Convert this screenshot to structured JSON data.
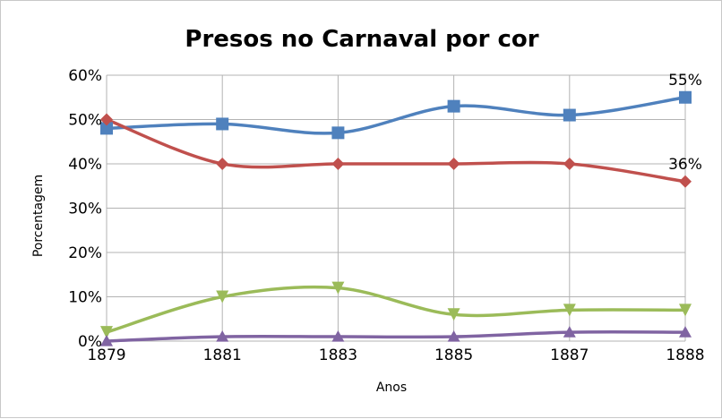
{
  "chart_data": {
    "type": "line",
    "title": "Presos no Carnaval por cor",
    "xlabel": "Anos",
    "ylabel": "Porcentagem",
    "categories": [
      "1879",
      "1881",
      "1883",
      "1885",
      "1887",
      "1888"
    ],
    "y_ticks": [
      "0%",
      "10%",
      "20%",
      "30%",
      "40%",
      "50%",
      "60%"
    ],
    "ylim": [
      0,
      60
    ],
    "grid": true,
    "legend": "none",
    "smooth": true,
    "series": [
      {
        "color": "#4f81bd",
        "marker": "square",
        "values": [
          48,
          49,
          47,
          53,
          51,
          55
        ]
      },
      {
        "color": "#c0504d",
        "marker": "diamond",
        "values": [
          50,
          40,
          40,
          40,
          40,
          36
        ]
      },
      {
        "color": "#9bbb59",
        "marker": "triangle-down",
        "values": [
          2,
          10,
          12,
          6,
          7,
          7
        ]
      },
      {
        "color": "#8064a2",
        "marker": "triangle-up",
        "values": [
          0,
          1,
          1,
          1,
          2,
          2
        ]
      }
    ],
    "data_labels": [
      {
        "series_index": 0,
        "point_index": 5,
        "text": "55%"
      },
      {
        "series_index": 1,
        "point_index": 5,
        "text": "36%"
      }
    ]
  }
}
